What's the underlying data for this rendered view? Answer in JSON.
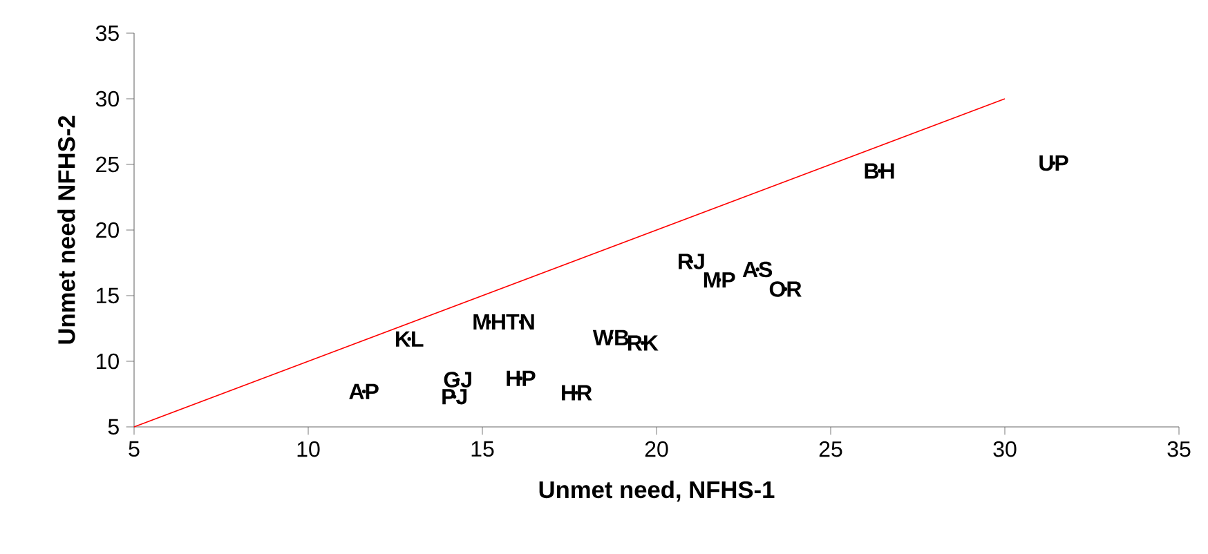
{
  "chart_data": {
    "type": "scatter",
    "xlabel": "Unmet need, NFHS-1",
    "ylabel": "Unmet need NFHS-2",
    "xlim": [
      5,
      35
    ],
    "ylim": [
      5,
      35
    ],
    "xticks": [
      5,
      10,
      15,
      20,
      25,
      30,
      35
    ],
    "yticks": [
      5,
      10,
      15,
      20,
      25,
      30,
      35
    ],
    "grid": false,
    "series": [
      {
        "marker": "circle",
        "color": "#000000",
        "x": [
          11.6,
          14.2,
          14.3,
          16.1,
          17.7,
          12.9,
          15.2,
          16.1,
          18.7,
          19.6,
          21.0,
          21.8,
          22.9,
          23.7,
          26.4,
          31.4
        ],
        "values": [
          7.7,
          7.3,
          8.6,
          8.7,
          7.6,
          11.7,
          13.0,
          13.0,
          11.8,
          11.4,
          17.6,
          16.2,
          17.0,
          15.5,
          24.5,
          25.1
        ],
        "value_labels": [
          "AP",
          "PJ",
          "GJ",
          "HP",
          "HR",
          "KL",
          "MH",
          "TN",
          "WB",
          "RK",
          "RJ",
          "MP",
          "AS",
          "OR",
          "BH",
          "UP"
        ]
      },
      {
        "type": "line",
        "marker": "none",
        "color": "#ff0000",
        "x": [
          5,
          30
        ],
        "values": [
          5,
          30
        ]
      }
    ]
  }
}
